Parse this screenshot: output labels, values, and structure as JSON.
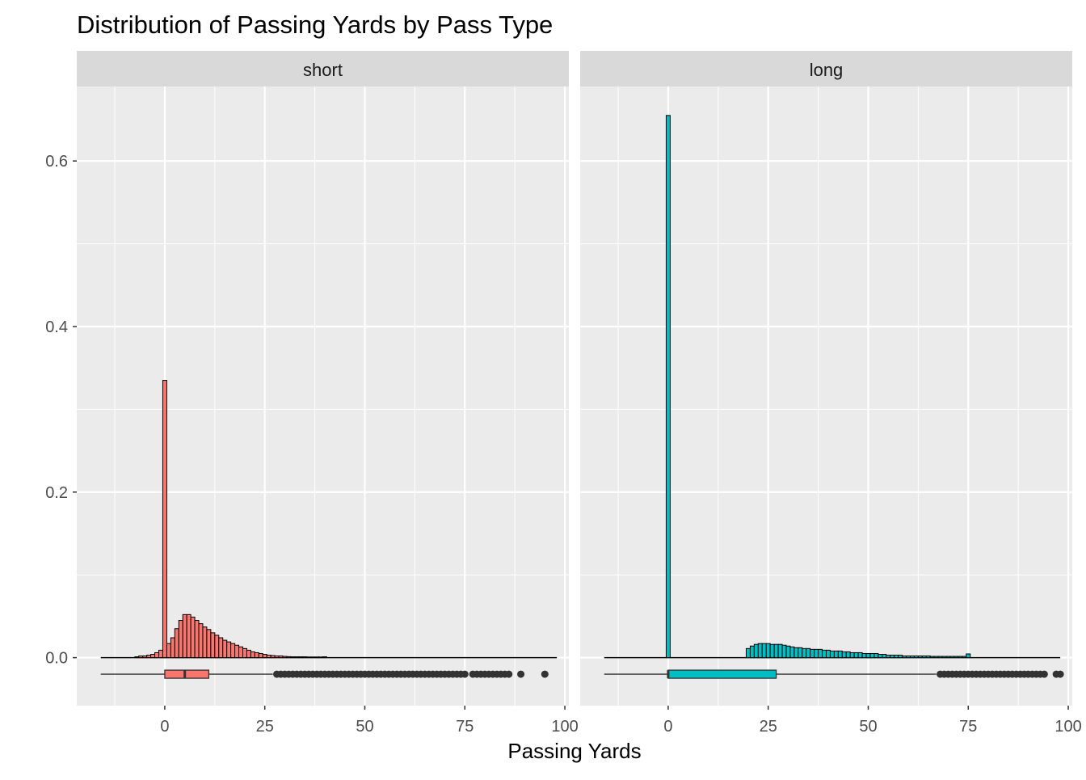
{
  "chart_data": {
    "type": "histogram",
    "title": "Distribution of Passing Yards by Pass Type",
    "xlabel": "Passing Yards",
    "ylabel": "",
    "xlim": [
      -22,
      101
    ],
    "ylim": [
      -0.058,
      0.69
    ],
    "x_ticks": [
      0,
      25,
      50,
      75,
      100
    ],
    "y_ticks": [
      0.0,
      0.2,
      0.4,
      0.6
    ],
    "y_tick_labels": [
      "0.0",
      "0.2",
      "0.4",
      "0.6"
    ],
    "grid": true,
    "bin_width": 1,
    "facets": [
      {
        "name": "short",
        "color": "#F8766D",
        "hist_range": [
          -16,
          98
        ],
        "bins_x": [
          -7,
          -6,
          -5,
          -4,
          -3,
          -2,
          -1,
          0,
          1,
          2,
          3,
          4,
          5,
          6,
          7,
          8,
          9,
          10,
          11,
          12,
          13,
          14,
          15,
          16,
          17,
          18,
          19,
          20,
          21,
          22,
          23,
          24,
          25,
          26,
          27,
          28,
          29,
          30,
          31,
          32,
          33,
          34,
          35,
          36,
          37,
          38,
          39,
          40
        ],
        "bins_density": [
          0.001,
          0.002,
          0.002,
          0.003,
          0.004,
          0.006,
          0.009,
          0.335,
          0.017,
          0.024,
          0.035,
          0.045,
          0.052,
          0.052,
          0.049,
          0.045,
          0.041,
          0.037,
          0.034,
          0.03,
          0.027,
          0.024,
          0.021,
          0.019,
          0.017,
          0.015,
          0.013,
          0.011,
          0.009,
          0.007,
          0.006,
          0.005,
          0.004,
          0.003,
          0.0025,
          0.002,
          0.002,
          0.0015,
          0.0012,
          0.001,
          0.001,
          0.001,
          0.001,
          0.0008,
          0.0008,
          0.0008,
          0.0008,
          0.001
        ],
        "boxplot": {
          "whisker_low": -16,
          "q1": 0,
          "median": 5,
          "q3": 11,
          "whisker_high": 27,
          "outliers": [
            28,
            29,
            30,
            31,
            32,
            33,
            34,
            35,
            36,
            37,
            38,
            39,
            40,
            41,
            42,
            43,
            44,
            45,
            46,
            47,
            48,
            49,
            50,
            51,
            52,
            53,
            54,
            55,
            56,
            57,
            58,
            59,
            60,
            61,
            62,
            63,
            64,
            65,
            66,
            67,
            68,
            69,
            70,
            71,
            72,
            73,
            74,
            75,
            77,
            78,
            79,
            80,
            81,
            82,
            83,
            84,
            85,
            86,
            89,
            95
          ]
        }
      },
      {
        "name": "long",
        "color": "#00BFC4",
        "hist_range": [
          -16,
          98
        ],
        "bins_x": [
          0,
          20,
          21,
          22,
          23,
          24,
          25,
          26,
          27,
          28,
          29,
          30,
          31,
          32,
          33,
          34,
          35,
          36,
          37,
          38,
          39,
          40,
          41,
          42,
          43,
          44,
          45,
          46,
          47,
          48,
          49,
          50,
          51,
          52,
          53,
          54,
          55,
          56,
          57,
          58,
          59,
          60,
          61,
          62,
          63,
          64,
          65,
          66,
          67,
          68,
          69,
          70,
          71,
          72,
          73,
          74,
          75
        ],
        "bins_density": [
          0.655,
          0.011,
          0.014,
          0.016,
          0.017,
          0.017,
          0.017,
          0.016,
          0.016,
          0.016,
          0.015,
          0.014,
          0.013,
          0.012,
          0.012,
          0.011,
          0.011,
          0.01,
          0.01,
          0.01,
          0.009,
          0.009,
          0.008,
          0.008,
          0.008,
          0.007,
          0.007,
          0.006,
          0.006,
          0.006,
          0.005,
          0.005,
          0.005,
          0.005,
          0.004,
          0.004,
          0.003,
          0.003,
          0.003,
          0.003,
          0.002,
          0.002,
          0.002,
          0.002,
          0.002,
          0.002,
          0.002,
          0.0015,
          0.0015,
          0.0015,
          0.0015,
          0.0015,
          0.0015,
          0.0015,
          0.0015,
          0.0015,
          0.0045
        ],
        "boxplot": {
          "whisker_low": -16,
          "q1": 0,
          "median": 0,
          "q3": 27,
          "whisker_high": 67,
          "outliers": [
            68,
            69,
            70,
            71,
            72,
            73,
            74,
            75,
            76,
            77,
            78,
            79,
            80,
            81,
            82,
            83,
            84,
            85,
            86,
            87,
            88,
            89,
            90,
            91,
            92,
            93,
            94,
            97,
            98
          ]
        }
      }
    ]
  }
}
